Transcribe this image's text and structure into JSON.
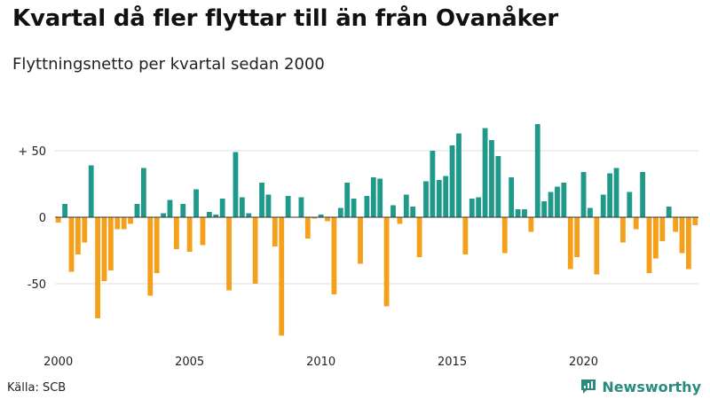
{
  "title": "Kvartal då fler flyttar till än från Ovanåker",
  "subtitle": "Flyttningsnetto per kvartal sedan 2000",
  "source": "Källa: SCB",
  "brand": "Newsworthy",
  "colors": {
    "positive": "#1f9a8a",
    "negative": "#f5a01a",
    "grid": "#dddddd",
    "zero": "#333333",
    "brand": "#2a8a7e"
  },
  "chart_data": {
    "type": "bar",
    "ylim": [
      -90,
      75
    ],
    "yticks": [
      {
        "value": 50,
        "label": "+ 50"
      },
      {
        "value": 0,
        "label": "0"
      },
      {
        "value": -50,
        "label": "-50"
      }
    ],
    "xticks": [
      {
        "year": 2000,
        "label": "2000"
      },
      {
        "year": 2005,
        "label": "2005"
      },
      {
        "year": 2010,
        "label": "2010"
      },
      {
        "year": 2015,
        "label": "2015"
      },
      {
        "year": 2020,
        "label": "2020"
      }
    ],
    "start": "2000-Q1",
    "values": [
      -4,
      10,
      -41,
      -28,
      -19,
      39,
      -76,
      -48,
      -40,
      -9,
      -9,
      -5,
      10,
      37,
      -59,
      -42,
      3,
      13,
      -24,
      10,
      -26,
      21,
      -21,
      4,
      2,
      14,
      -55,
      49,
      15,
      3,
      -50,
      26,
      17,
      -22,
      -89,
      16,
      0,
      15,
      -16,
      -1,
      2,
      -3,
      -58,
      7,
      26,
      14,
      -35,
      16,
      30,
      29,
      -67,
      9,
      -5,
      17,
      8,
      -30,
      27,
      50,
      28,
      31,
      54,
      63,
      -28,
      14,
      15,
      67,
      58,
      46,
      -27,
      30,
      6,
      6,
      -11,
      70,
      12,
      19,
      23,
      26,
      -39,
      -30,
      34,
      7,
      -43,
      17,
      33,
      37,
      -19,
      19,
      -9,
      34,
      -42,
      -31,
      -18,
      8,
      -11,
      -27,
      -39,
      -6
    ]
  }
}
